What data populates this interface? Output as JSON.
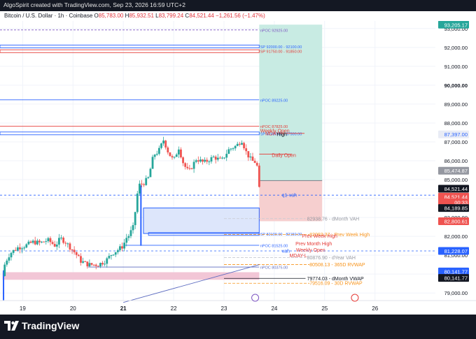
{
  "header": {
    "attribution": "AlgoSpirit created with TradingView.com, Sep 23, 2026 16:59 UTC+2"
  },
  "symbol": {
    "name": "Bitcoin / U.S. Dollar · 1h · Coinbase",
    "ohlc": [
      {
        "k": "O",
        "v": "85,783.00"
      },
      {
        "k": "H",
        "v": "85,932.51"
      },
      {
        "k": "L",
        "v": "83,799.24"
      },
      {
        "k": "C",
        "v": "84,521.44"
      }
    ],
    "change": "−1,261.56 (−1.47%)"
  },
  "footer": {
    "brand": "TradingView"
  },
  "colors": {
    "up": "#26a69a",
    "down": "#ef5350",
    "blue_line": "#2962ff",
    "red_line": "#d32f2f",
    "orange": "#f7931a",
    "gray_text": "#9598a1",
    "dark_bar": "#141823"
  },
  "chart_data": {
    "type": "candlestick",
    "y_axis": {
      "min": 78600,
      "max": 93400,
      "ticks": [
        "79,000.00",
        "80,000.00",
        "81,000.00",
        "82,000.00",
        "83,000.00",
        "84,000.00",
        "85,000.00",
        "86,000.00",
        "87,000.00",
        "88,000.00",
        "89,000.00",
        "90,000.00",
        "91,000.00",
        "92,000.00",
        "93,000.00"
      ],
      "tick_values": [
        79000,
        80000,
        81000,
        82000,
        83000,
        84000,
        85000,
        86000,
        87000,
        88000,
        89000,
        90000,
        91000,
        92000,
        93000
      ],
      "bold_tick": "90,000.00"
    },
    "x_axis": {
      "ticks": [
        {
          "label": "19",
          "x": 19,
          "bold": false
        },
        {
          "label": "20",
          "x": 20,
          "bold": false
        },
        {
          "label": "21",
          "x": 21,
          "bold": true
        },
        {
          "label": "22",
          "x": 22,
          "bold": false
        },
        {
          "label": "23",
          "x": 23,
          "bold": false
        },
        {
          "label": "24",
          "x": 24,
          "bold": false
        },
        {
          "label": "25",
          "x": 25,
          "bold": false
        },
        {
          "label": "26",
          "x": 26,
          "bold": false
        }
      ],
      "range": [
        18.55,
        27.2
      ]
    },
    "candles_path": [
      [
        18.6,
        79900
      ],
      [
        18.65,
        80600
      ],
      [
        18.75,
        81100
      ],
      [
        18.9,
        81400
      ],
      [
        19.05,
        81500
      ],
      [
        19.2,
        81700
      ],
      [
        19.35,
        81650
      ],
      [
        19.5,
        81800
      ],
      [
        19.65,
        81500
      ],
      [
        19.75,
        81900
      ],
      [
        19.85,
        81700
      ],
      [
        19.95,
        81400
      ],
      [
        20.05,
        81100
      ],
      [
        20.15,
        80700
      ],
      [
        20.3,
        80500
      ],
      [
        20.5,
        80500
      ],
      [
        20.65,
        80700
      ],
      [
        20.78,
        81100
      ],
      [
        20.9,
        81300
      ],
      [
        21.0,
        81500
      ],
      [
        21.05,
        81900
      ],
      [
        21.1,
        82000
      ],
      [
        21.2,
        82500
      ],
      [
        21.3,
        84700
      ],
      [
        21.4,
        84800
      ],
      [
        21.5,
        85100
      ],
      [
        21.6,
        86300
      ],
      [
        21.7,
        86500
      ],
      [
        21.8,
        87100
      ],
      [
        21.9,
        86400
      ],
      [
        22.0,
        86000
      ],
      [
        22.1,
        86700
      ],
      [
        22.2,
        85800
      ],
      [
        22.3,
        85400
      ],
      [
        22.45,
        86100
      ],
      [
        22.6,
        85900
      ],
      [
        22.8,
        86200
      ],
      [
        22.95,
        86000
      ],
      [
        23.1,
        86600
      ],
      [
        23.25,
        86800
      ],
      [
        23.35,
        87100
      ],
      [
        23.45,
        86400
      ],
      [
        23.55,
        86000
      ],
      [
        23.65,
        85900
      ],
      [
        23.7,
        84500
      ]
    ],
    "levels": [
      {
        "label": "nPOC 92925.00",
        "price": 92925,
        "color": "#7e57c2",
        "style": "dash",
        "x0": 18.55
      },
      {
        "label": "SP 92000.00 - 92100.00",
        "price": 92050,
        "color": "#2962ff",
        "style": "band",
        "x0": 18.55
      },
      {
        "label": "SP 91750.00 - 91850.00",
        "price": 91800,
        "color": "#e53935",
        "style": "band",
        "x0": 18.55
      },
      {
        "label": "nPOC 89225.00",
        "price": 89225,
        "color": "#2962ff",
        "style": "solid",
        "x0": 18.55
      },
      {
        "label": "nPOC 87825.00",
        "price": 87825,
        "color": "#e53935",
        "style": "solid",
        "x0": 18.55
      },
      {
        "label": "SP 87400.00 - 87500.00",
        "price": 87450,
        "color": "#2962ff",
        "style": "band",
        "x0": 18.55
      },
      {
        "label": "nPOC 81525.00",
        "price": 81525,
        "color": "#2962ff",
        "style": "solid",
        "x0": 21.0
      },
      {
        "label": "nPOC 80375.00",
        "price": 80375,
        "color": "#5c6bc0",
        "style": "solid",
        "x0": 20.3
      },
      {
        "label": "SP 82100.00 - 82150.00",
        "price": 82125,
        "color": "#2962ff",
        "style": "band",
        "x0": 21.5
      }
    ],
    "right_labels": [
      {
        "text": "Weekly Open",
        "price": 87600,
        "color": "#e53935",
        "x": 23.72
      },
      {
        "text": "MDAY-H",
        "price": 87450,
        "color": "#e53935",
        "x": 23.82
      },
      {
        "text": "High",
        "price": 87397,
        "color": "#131722",
        "x": 24.05
      },
      {
        "text": "Daily Open",
        "price": 86300,
        "color": "#e53935",
        "x": 23.95
      },
      {
        "text": "q1-vah",
        "price": 84180,
        "color": "#2962ff",
        "x": 24.15
      },
      {
        "text": "82938.76 - dMonth VAH",
        "price": 82938,
        "color": "#9598a1",
        "x": 24.65
      },
      {
        "text": "82093.37 - Prev Week High",
        "price": 82093,
        "color": "#f7931a",
        "x": 24.7
      },
      {
        "text": "Prev Week High",
        "price": 82030,
        "color": "#e53935",
        "x": 24.55
      },
      {
        "text": "Prev Month High",
        "price": 81620,
        "color": "#e53935",
        "x": 24.42
      },
      {
        "text": "Weekly Open",
        "price": 81290,
        "color": "#e53935",
        "x": 24.43
      },
      {
        "text": "MDAY-L",
        "price": 80980,
        "color": "#e53935",
        "x": 24.3
      },
      {
        "text": "vah",
        "price": 81230,
        "color": "#2962ff",
        "x": 24.15
      },
      {
        "text": "80876.90 - dYear VAH",
        "price": 80877,
        "color": "#9598a1",
        "x": 24.65
      },
      {
        "text": "80508.13 - 365D RVWAP",
        "price": 80508,
        "color": "#f7931a",
        "x": 24.7
      },
      {
        "text": "79774.03 - dMonth VWAP",
        "price": 79774,
        "color": "#131722",
        "x": 24.65
      },
      {
        "text": "79516.09 - 30D RVWAP",
        "price": 79516,
        "color": "#f7931a",
        "x": 24.7
      }
    ],
    "boxes": [
      {
        "name": "long-position-profit",
        "x0": 23.7,
        "x1": 24.95,
        "p_top": 93205,
        "p_bot": 84950,
        "fill": "#c8ebe3"
      },
      {
        "name": "long-position-loss",
        "x0": 23.7,
        "x1": 24.95,
        "p_top": 84950,
        "p_bot": 82800,
        "fill": "#f6cfcf"
      },
      {
        "name": "demand-zone",
        "x0": 21.4,
        "x1": 23.7,
        "p_top": 83500,
        "p_bot": 82150,
        "fill": "#dde6fb"
      },
      {
        "name": "pink-zone",
        "x0": 18.6,
        "x1": 23.7,
        "p_top": 80100,
        "p_bot": 79700,
        "fill": "#f2c6d6"
      }
    ],
    "price_labels": [
      {
        "text": "93,205.17",
        "price": 93205,
        "bg": "#26a69a",
        "fg": "#ffffff"
      },
      {
        "text": "87,397.00",
        "price": 87397,
        "bg": "#e9ecf5",
        "fg": "#2962ff"
      },
      {
        "text": "85,474.87",
        "price": 85475,
        "bg": "#9598a1",
        "fg": "#ffffff"
      },
      {
        "text": "84,521.44",
        "price": 84521,
        "bg": "#131722",
        "fg": "#ffffff"
      },
      {
        "text": "84,521.44",
        "price": 84100,
        "bg": "#ef5350",
        "fg": "#ffffff"
      },
      {
        "text": "00:33",
        "price": 83800,
        "bg": "#ef5350",
        "fg": "#ffffff"
      },
      {
        "text": "84,189.85",
        "price": 83500,
        "bg": "#131722",
        "fg": "#ffffff"
      },
      {
        "text": "82,800.61",
        "price": 82800,
        "bg": "#ef5350",
        "fg": "#ffffff"
      },
      {
        "text": "81,228.07",
        "price": 81228,
        "bg": "#2962ff",
        "fg": "#ffffff"
      },
      {
        "text": "80,141.77",
        "price": 80142,
        "bg": "#2962ff",
        "fg": "#ffffff"
      },
      {
        "text": "80,141.77",
        "price": 79800,
        "bg": "#131722",
        "fg": "#ffffff"
      }
    ]
  }
}
